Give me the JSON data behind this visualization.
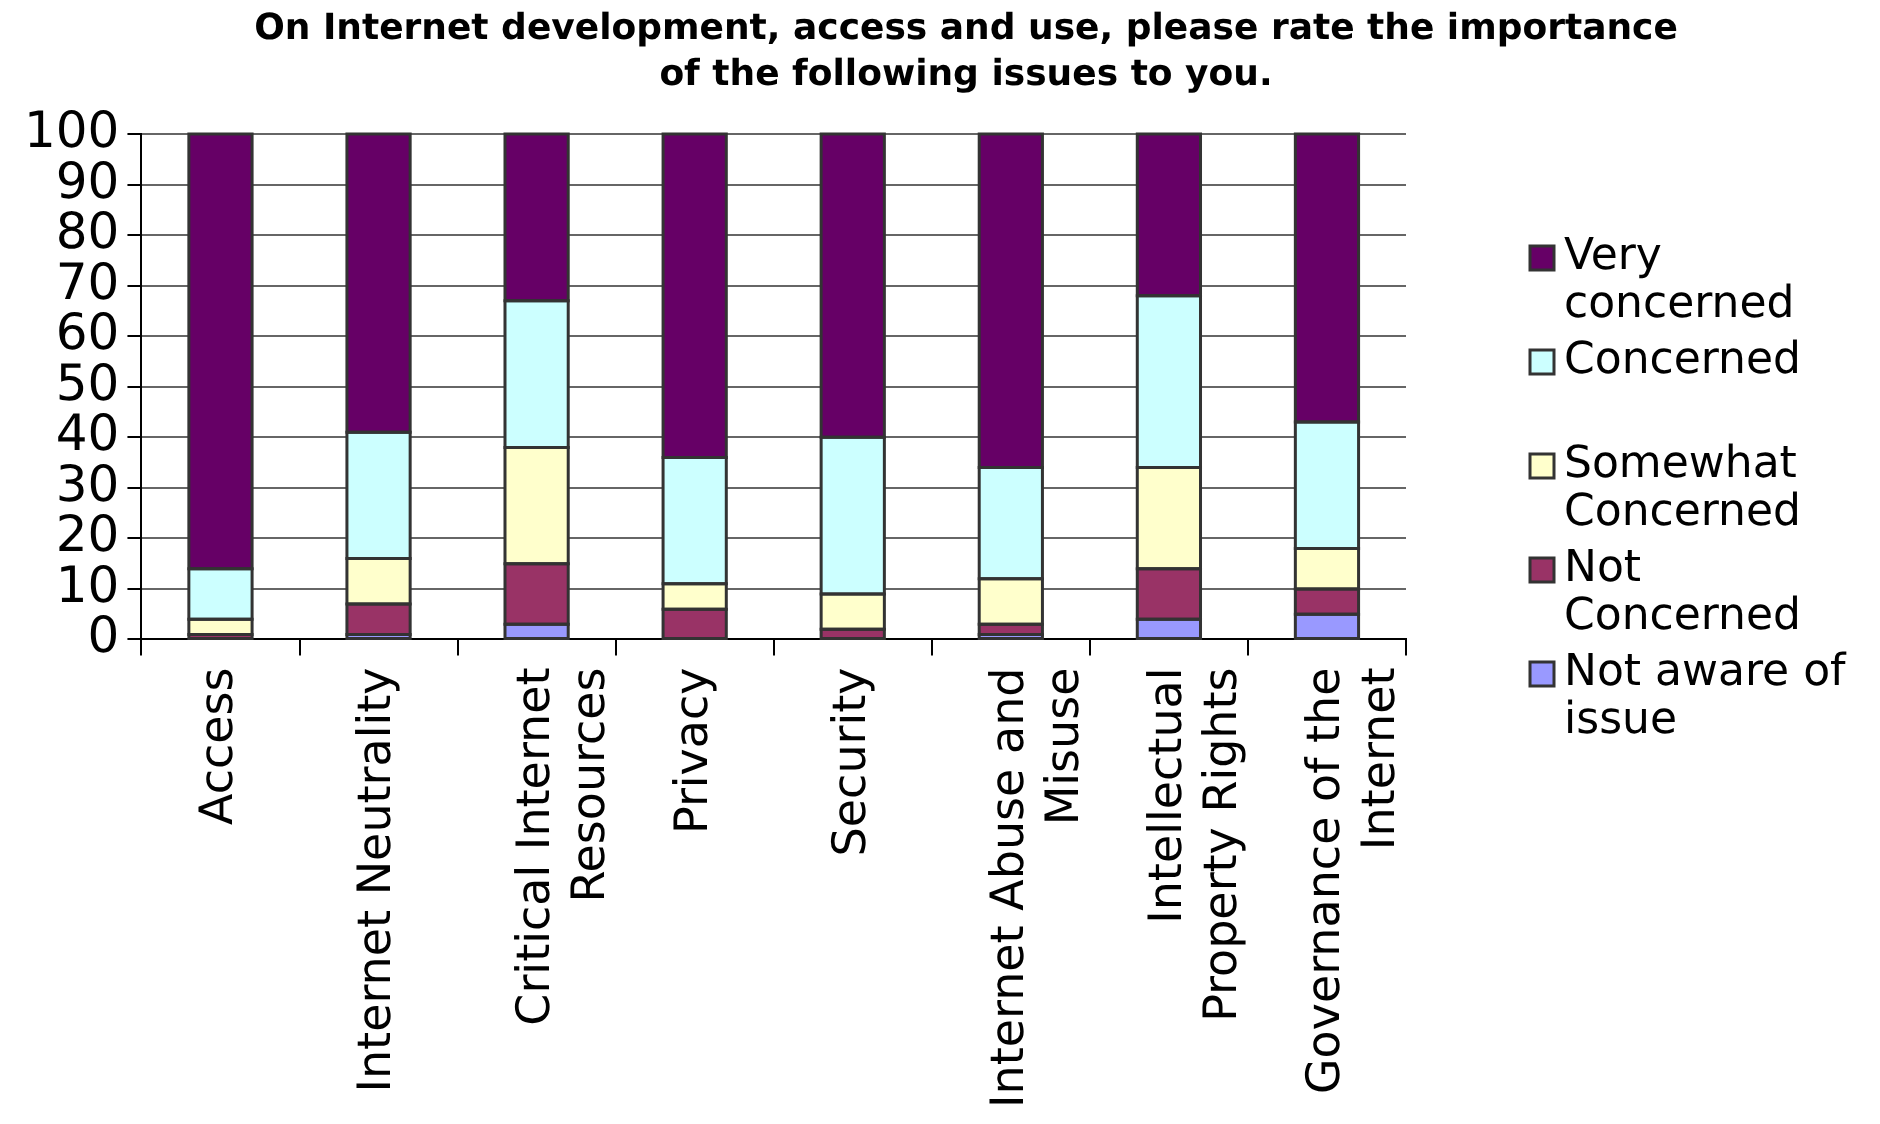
{
  "chart_data": {
    "type": "bar",
    "title": "On Internet development, access and use, please rate the importance of the following issues to you.",
    "categories": [
      "Access",
      "Internet Neutrality",
      "Critical Internet Resources",
      "Privacy",
      "Security",
      "Internet Abuse and Misuse",
      "Intellectual Property Rights",
      "Governance of the Internet"
    ],
    "series": [
      {
        "name": "Not aware of issue",
        "color": "#9999ff",
        "values": [
          0,
          1,
          3,
          0,
          0,
          1,
          4,
          5
        ]
      },
      {
        "name": "Not Concerned",
        "color": "#993366",
        "values": [
          1,
          6,
          12,
          6,
          2,
          2,
          10,
          5
        ]
      },
      {
        "name": "Somewhat Concerned",
        "color": "#ffffcc",
        "values": [
          3,
          9,
          23,
          5,
          7,
          9,
          20,
          8
        ]
      },
      {
        "name": "Concerned",
        "color": "#ccffff",
        "values": [
          10,
          25,
          29,
          25,
          31,
          22,
          34,
          25
        ]
      },
      {
        "name": "Very concerned",
        "color": "#660066",
        "values": [
          86,
          59,
          33,
          64,
          60,
          66,
          32,
          57
        ]
      }
    ],
    "stacked": true,
    "ylim": [
      0,
      100
    ],
    "yticks": [
      0,
      10,
      20,
      30,
      40,
      50,
      60,
      70,
      80,
      90,
      100
    ],
    "grid": "y",
    "legend": "right"
  }
}
